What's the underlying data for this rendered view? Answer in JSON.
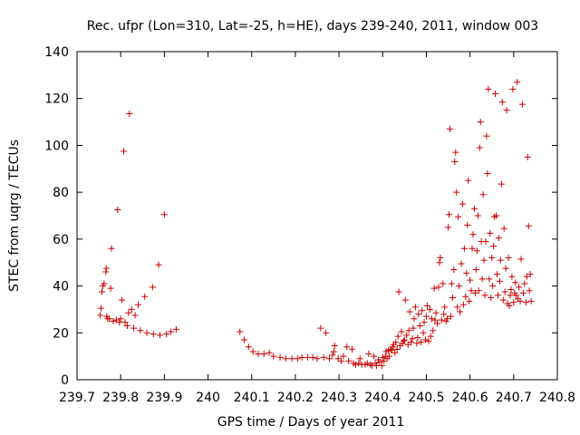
{
  "chart_data": {
    "type": "scatter",
    "title": "Rec. ufpr (Lon=310, Lat=-25, h=HE), days 239-240, 2011, window 003",
    "xlabel": "GPS time / Days of year 2011",
    "ylabel": "STEC from uqrg / TECUs",
    "xlim": [
      239.7,
      240.8
    ],
    "ylim": [
      0,
      140
    ],
    "xticks": [
      "239.7",
      "239.8",
      "239.9",
      "240",
      "240.1",
      "240.2",
      "240.3",
      "240.4",
      "240.5",
      "240.6",
      "240.7",
      "240.8"
    ],
    "yticks": [
      "0",
      "20",
      "40",
      "60",
      "80",
      "100",
      "120",
      "140"
    ],
    "grid": false,
    "legend": "none",
    "marker": "plus",
    "color": "#cc0000",
    "series": [
      {
        "points": [
          [
            239.753,
            27.5
          ],
          [
            239.755,
            30.5
          ],
          [
            239.757,
            37.5
          ],
          [
            239.759,
            40.0
          ],
          [
            239.762,
            41.0
          ],
          [
            239.766,
            46.0
          ],
          [
            239.767,
            47.5
          ],
          [
            239.768,
            27.0
          ],
          [
            239.77,
            26.0
          ],
          [
            239.774,
            26.0
          ],
          [
            239.777,
            39.0
          ],
          [
            239.779,
            56.0
          ],
          [
            239.783,
            25.0
          ],
          [
            239.79,
            25.5
          ],
          [
            239.793,
            72.5
          ],
          [
            239.797,
            24.5
          ],
          [
            239.8,
            26.0
          ],
          [
            239.803,
            34.0
          ],
          [
            239.807,
            97.5
          ],
          [
            239.81,
            24.5
          ],
          [
            239.815,
            23.0
          ],
          [
            239.818,
            28.5
          ],
          [
            239.82,
            113.5
          ],
          [
            239.825,
            30.0
          ],
          [
            239.83,
            22.0
          ],
          [
            239.833,
            27.5
          ],
          [
            239.84,
            32.0
          ],
          [
            239.845,
            21.0
          ],
          [
            239.855,
            35.5
          ],
          [
            239.86,
            20.0
          ],
          [
            239.873,
            39.5
          ],
          [
            239.875,
            19.5
          ],
          [
            239.887,
            49.0
          ],
          [
            239.89,
            19.0
          ],
          [
            239.9,
            70.5
          ],
          [
            239.905,
            19.5
          ],
          [
            239.915,
            20.5
          ],
          [
            239.927,
            21.5
          ],
          [
            240.073,
            20.5
          ],
          [
            240.083,
            17.0
          ],
          [
            240.093,
            14.0
          ],
          [
            240.103,
            12.0
          ],
          [
            240.115,
            11.0
          ],
          [
            240.128,
            11.0
          ],
          [
            240.14,
            11.5
          ],
          [
            240.15,
            10.0
          ],
          [
            240.165,
            9.5
          ],
          [
            240.178,
            9.0
          ],
          [
            240.192,
            9.0
          ],
          [
            240.205,
            9.0
          ],
          [
            240.215,
            9.5
          ],
          [
            240.228,
            9.5
          ],
          [
            240.24,
            9.5
          ],
          [
            240.25,
            9.0
          ],
          [
            240.258,
            22.0
          ],
          [
            240.265,
            9.5
          ],
          [
            240.27,
            20.0
          ],
          [
            240.278,
            9.0
          ],
          [
            240.285,
            10.5
          ],
          [
            240.288,
            12.0
          ],
          [
            240.29,
            14.5
          ],
          [
            240.298,
            9.0
          ],
          [
            240.305,
            8.0
          ],
          [
            240.31,
            10.0
          ],
          [
            240.318,
            14.0
          ],
          [
            240.322,
            8.0
          ],
          [
            240.33,
            13.0
          ],
          [
            240.333,
            7.0
          ],
          [
            240.338,
            6.5
          ],
          [
            240.345,
            7.0
          ],
          [
            240.348,
            9.0
          ],
          [
            240.352,
            6.5
          ],
          [
            240.36,
            6.5
          ],
          [
            240.365,
            7.0
          ],
          [
            240.368,
            11.0
          ],
          [
            240.372,
            6.5
          ],
          [
            240.375,
            6.0
          ],
          [
            240.38,
            10.0
          ],
          [
            240.383,
            7.0
          ],
          [
            240.386,
            6.0
          ],
          [
            240.39,
            8.5
          ],
          [
            240.393,
            7.5
          ],
          [
            240.398,
            6.0
          ],
          [
            240.4,
            9.5
          ],
          [
            240.403,
            8.0
          ],
          [
            240.406,
            10.0
          ],
          [
            240.408,
            12.0
          ],
          [
            240.41,
            9.0
          ],
          [
            240.413,
            12.5
          ],
          [
            240.415,
            10.0
          ],
          [
            240.418,
            13.0
          ],
          [
            240.42,
            12.5
          ],
          [
            240.423,
            14.0
          ],
          [
            240.425,
            15.0
          ],
          [
            240.428,
            11.5
          ],
          [
            240.43,
            16.0
          ],
          [
            240.433,
            13.0
          ],
          [
            240.435,
            18.5
          ],
          [
            240.437,
            37.5
          ],
          [
            240.44,
            14.5
          ],
          [
            240.443,
            20.5
          ],
          [
            240.445,
            15.5
          ],
          [
            240.448,
            16.5
          ],
          [
            240.45,
            17.0
          ],
          [
            240.452,
            34.0
          ],
          [
            240.455,
            19.0
          ],
          [
            240.458,
            15.0
          ],
          [
            240.46,
            21.0
          ],
          [
            240.462,
            29.0
          ],
          [
            240.465,
            16.0
          ],
          [
            240.468,
            17.5
          ],
          [
            240.47,
            22.0
          ],
          [
            240.472,
            26.0
          ],
          [
            240.475,
            31.0
          ],
          [
            240.478,
            15.5
          ],
          [
            240.48,
            18.0
          ],
          [
            240.482,
            28.0
          ],
          [
            240.485,
            23.0
          ],
          [
            240.488,
            16.0
          ],
          [
            240.49,
            29.5
          ],
          [
            240.493,
            20.0
          ],
          [
            240.495,
            24.5
          ],
          [
            240.498,
            17.0
          ],
          [
            240.5,
            27.0
          ],
          [
            240.502,
            31.5
          ],
          [
            240.505,
            16.5
          ],
          [
            240.508,
            30.0
          ],
          [
            240.51,
            18.5
          ],
          [
            240.512,
            26.0
          ],
          [
            240.515,
            21.0
          ],
          [
            240.518,
            39.0
          ],
          [
            240.52,
            25.5
          ],
          [
            240.522,
            28.5
          ],
          [
            240.525,
            24.0
          ],
          [
            240.528,
            39.5
          ],
          [
            240.53,
            50.0
          ],
          [
            240.532,
            52.0
          ],
          [
            240.535,
            25.5
          ],
          [
            240.538,
            41.0
          ],
          [
            240.54,
            28.0
          ],
          [
            240.542,
            31.0
          ],
          [
            240.545,
            25.0
          ],
          [
            240.548,
            26.0
          ],
          [
            240.55,
            65.0
          ],
          [
            240.552,
            70.5
          ],
          [
            240.554,
            107.0
          ],
          [
            240.556,
            27.0
          ],
          [
            240.558,
            41.0
          ],
          [
            240.56,
            35.0
          ],
          [
            240.563,
            47.0
          ],
          [
            240.565,
            93.0
          ],
          [
            240.567,
            97.0
          ],
          [
            240.569,
            80.0
          ],
          [
            240.571,
            31.0
          ],
          [
            240.573,
            69.5
          ],
          [
            240.575,
            40.0
          ],
          [
            240.577,
            29.0
          ],
          [
            240.58,
            49.5
          ],
          [
            240.583,
            75.0
          ],
          [
            240.585,
            32.0
          ],
          [
            240.587,
            56.0
          ],
          [
            240.59,
            35.5
          ],
          [
            240.592,
            45.5
          ],
          [
            240.594,
            66.0
          ],
          [
            240.596,
            85.0
          ],
          [
            240.598,
            33.5
          ],
          [
            240.6,
            42.5
          ],
          [
            240.603,
            38.0
          ],
          [
            240.605,
            56.0
          ],
          [
            240.607,
            62.0
          ],
          [
            240.61,
            73.0
          ],
          [
            240.612,
            37.0
          ],
          [
            240.614,
            47.0
          ],
          [
            240.616,
            55.0
          ],
          [
            240.618,
            70.0
          ],
          [
            240.62,
            38.0
          ],
          [
            240.622,
            99.0
          ],
          [
            240.624,
            110.0
          ],
          [
            240.626,
            59.0
          ],
          [
            240.628,
            43.0
          ],
          [
            240.63,
            79.0
          ],
          [
            240.632,
            51.0
          ],
          [
            240.634,
            36.0
          ],
          [
            240.636,
            59.0
          ],
          [
            240.638,
            104.0
          ],
          [
            240.64,
            88.0
          ],
          [
            240.642,
            124.0
          ],
          [
            240.644,
            43.0
          ],
          [
            240.646,
            62.5
          ],
          [
            240.648,
            35.0
          ],
          [
            240.65,
            52.0
          ],
          [
            240.652,
            40.0
          ],
          [
            240.654,
            57.0
          ],
          [
            240.656,
            69.5
          ],
          [
            240.658,
            122.0
          ],
          [
            240.66,
            70.0
          ],
          [
            240.662,
            45.0
          ],
          [
            240.664,
            36.0
          ],
          [
            240.666,
            60.5
          ],
          [
            240.668,
            42.0
          ],
          [
            240.67,
            51.0
          ],
          [
            240.672,
            83.5
          ],
          [
            240.674,
            118.5
          ],
          [
            240.676,
            34.0
          ],
          [
            240.678,
            64.5
          ],
          [
            240.68,
            37.5
          ],
          [
            240.682,
            47.5
          ],
          [
            240.684,
            115.0
          ],
          [
            240.686,
            32.5
          ],
          [
            240.688,
            52.0
          ],
          [
            240.69,
            31.5
          ],
          [
            240.692,
            36.0
          ],
          [
            240.694,
            38.5
          ],
          [
            240.696,
            44.0
          ],
          [
            240.698,
            124.0
          ],
          [
            240.7,
            33.0
          ],
          [
            240.702,
            37.0
          ],
          [
            240.704,
            41.5
          ],
          [
            240.706,
            36.0
          ],
          [
            240.708,
            127.0
          ],
          [
            240.71,
            34.5
          ],
          [
            240.712,
            39.5
          ],
          [
            240.715,
            33.5
          ],
          [
            240.717,
            51.5
          ],
          [
            240.72,
            117.5
          ],
          [
            240.722,
            37.0
          ],
          [
            240.725,
            41.0
          ],
          [
            240.728,
            33.0
          ],
          [
            240.73,
            44.0
          ],
          [
            240.732,
            95.0
          ],
          [
            240.734,
            65.5
          ],
          [
            240.736,
            38.0
          ],
          [
            240.738,
            45.0
          ],
          [
            240.74,
            33.5
          ]
        ]
      }
    ]
  }
}
